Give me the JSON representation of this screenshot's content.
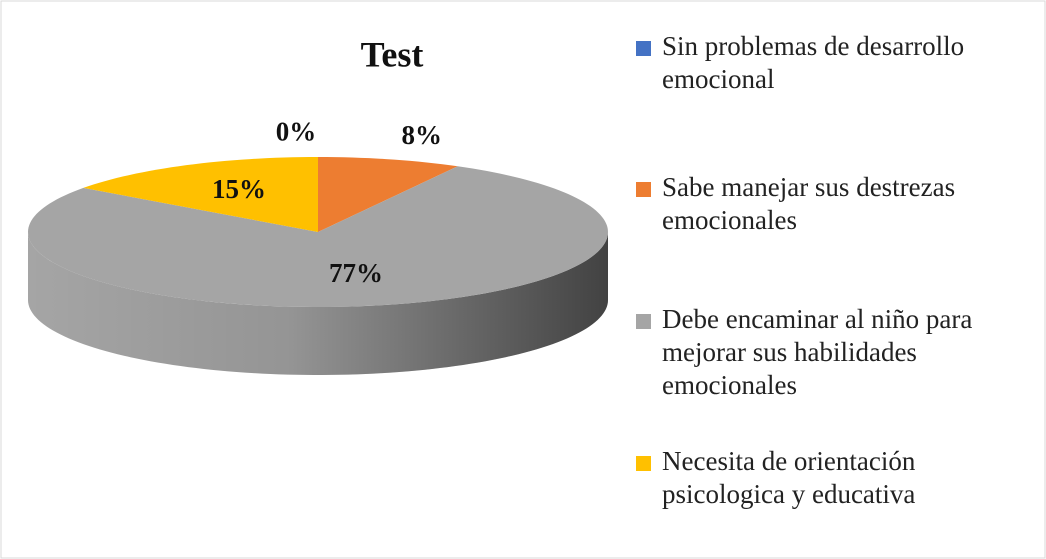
{
  "chart_data": {
    "type": "pie",
    "title": "Test",
    "categories": [
      "Sin problemas de desarrollo emocional",
      "Sabe manejar sus destrezas emocionales",
      "Debe encaminar al niño para mejorar sus habilidades emocionales",
      "Necesita de orientación psicologica y educativa"
    ],
    "values": [
      0,
      8,
      77,
      15
    ],
    "value_labels": [
      "0%",
      "8%",
      "77%",
      "15%"
    ],
    "colors": [
      "#4472c4",
      "#ed7d31",
      "#a5a5a5",
      "#ffc000"
    ],
    "legend": "right"
  }
}
